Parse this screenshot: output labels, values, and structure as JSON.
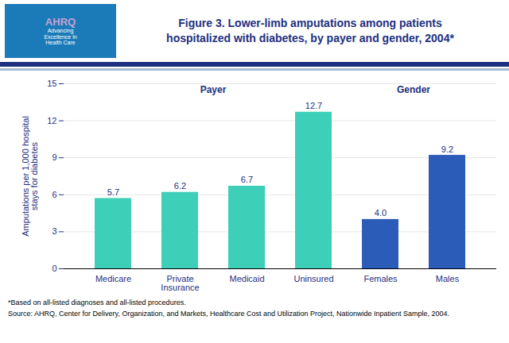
{
  "chart_data": {
    "type": "bar",
    "title": "Figure 3. Lower-limb amputations among patients\nhospitalized with diabetes, by payer and gender, 2004*",
    "categories": [
      "Medicare",
      "Private\nInsurance",
      "Medicaid",
      "Uninsured",
      "Females",
      "Males"
    ],
    "values": [
      5.7,
      6.2,
      6.7,
      12.7,
      4.0,
      9.2
    ],
    "value_labels": [
      "5.7",
      "6.2",
      "6.7",
      "12.7",
      "4.0",
      "9.2"
    ],
    "colors": [
      "#3ECFB8",
      "#3ECFB8",
      "#3ECFB8",
      "#3ECFB8",
      "#2B5CB8",
      "#2B5CB8"
    ],
    "ylabel": "Amputations per 1,000 hospital\nstays for diabetes",
    "ylim": [
      0,
      15
    ],
    "yticks": [
      0,
      3,
      6,
      9,
      12,
      15
    ],
    "grid": true,
    "data_labels": true,
    "annotations": [
      {
        "text": "Payer",
        "categories": [
          "Medicare",
          "Private\nInsurance",
          "Medicaid",
          "Uninsured"
        ],
        "y": 14.4
      },
      {
        "text": "Gender",
        "categories": [
          "Females",
          "Males"
        ],
        "y": 14.4
      }
    ],
    "logo": [
      "AHRQ",
      "Advancing\nExcellence in\nHealth Care"
    ],
    "footnotes": [
      "*Based on all-listed diagnoses and all-listed procedures.",
      "Source:  AHRQ, Center for Delivery, Organization, and Markets, Healthcare Cost and Utilization Project, Nationwide Inpatient Sample, 2004."
    ]
  }
}
